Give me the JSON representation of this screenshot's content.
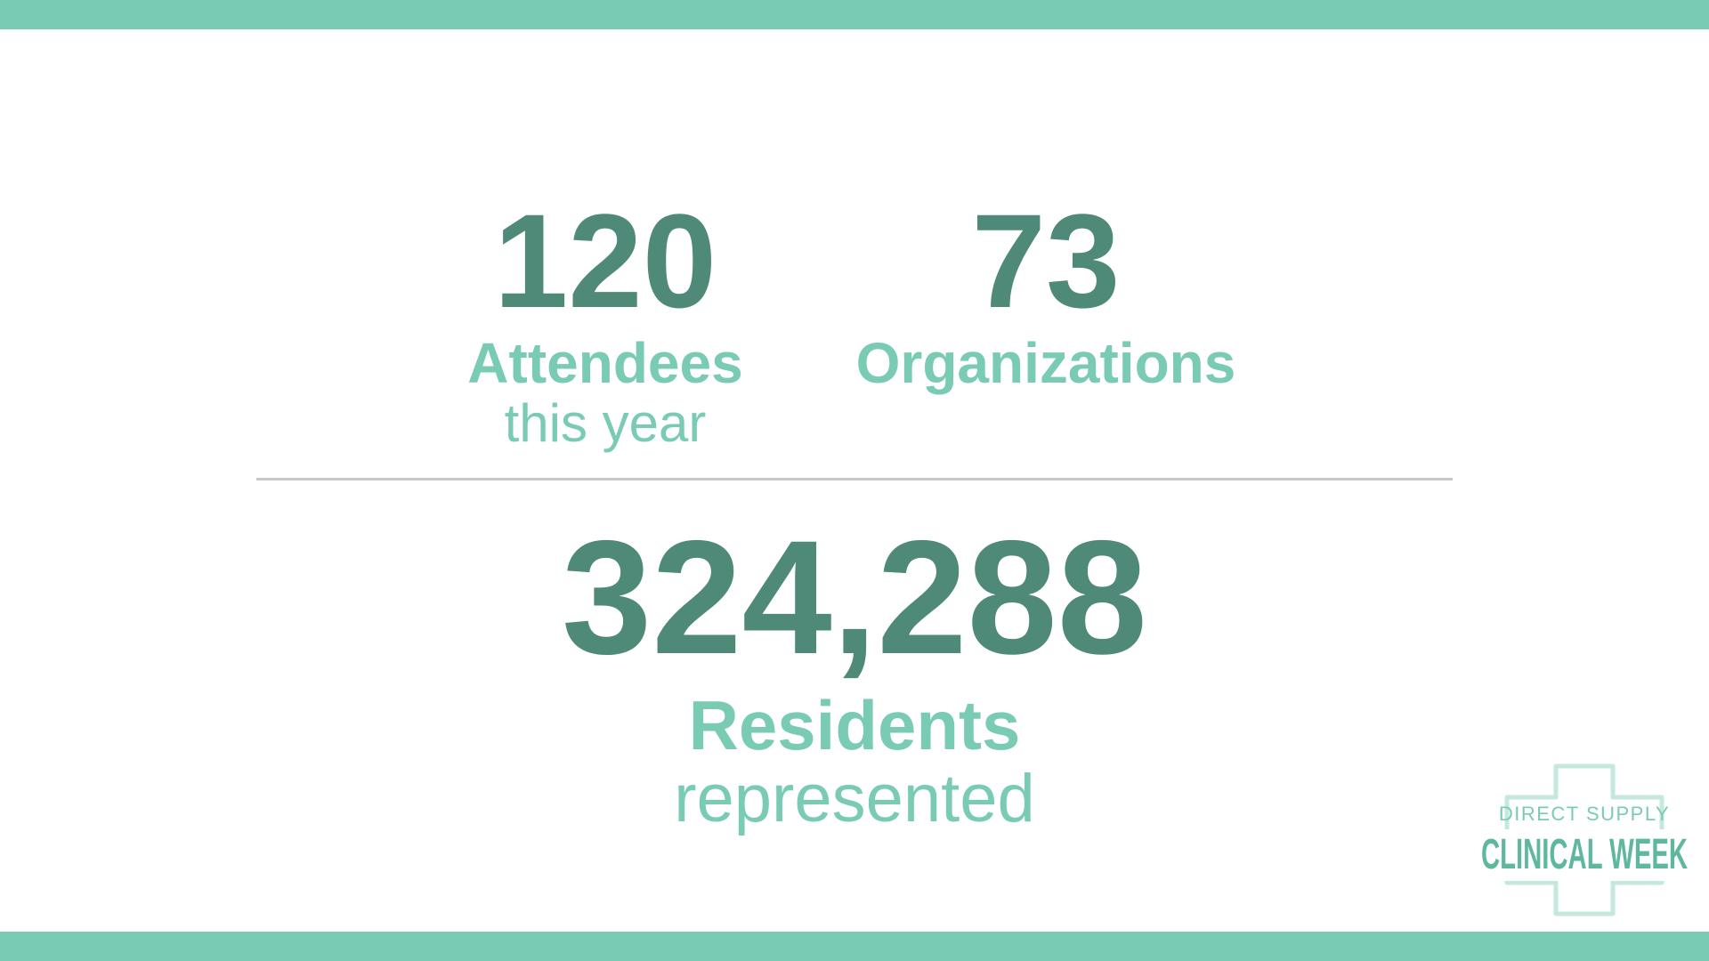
{
  "stats": {
    "attendees": {
      "value": "120",
      "label": "Attendees",
      "sublabel": "this year"
    },
    "organizations": {
      "value": "73",
      "label": "Organizations"
    },
    "residents": {
      "value": "324,288",
      "label": "Residents",
      "sublabel": "represented"
    }
  },
  "logo": {
    "line1": "DIRECT SUPPLY",
    "line2": "CLINICAL WEEK"
  },
  "colors": {
    "accent": "#7acbb3",
    "number": "#4f8a78",
    "divider": "#c8c8c8"
  }
}
